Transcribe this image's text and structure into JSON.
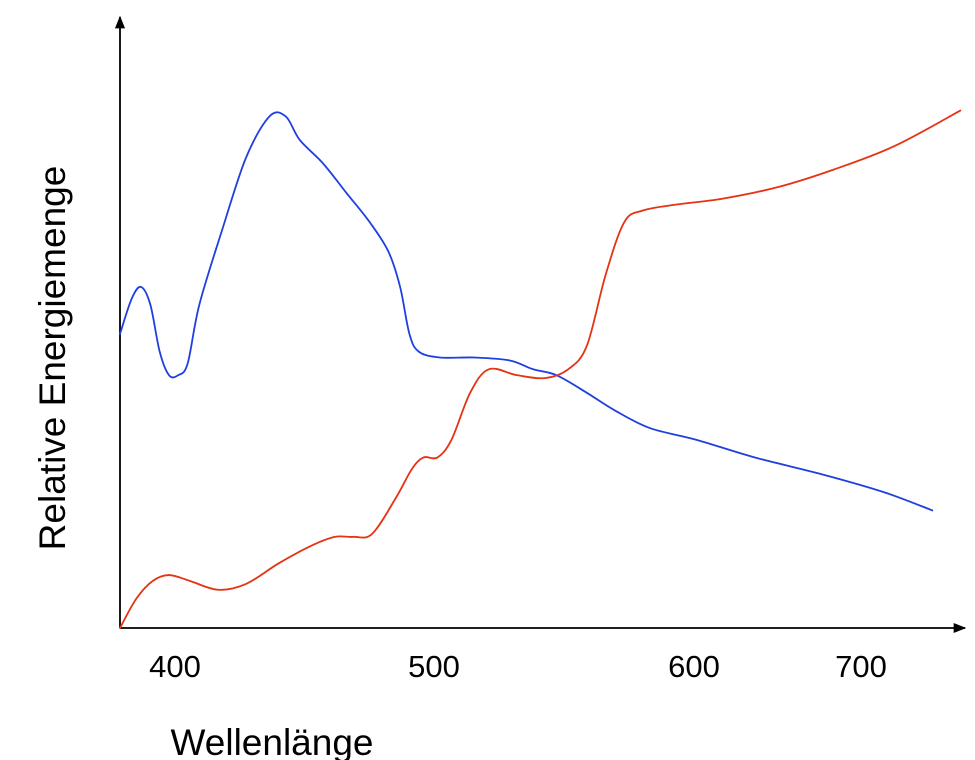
{
  "chart_data": {
    "type": "line",
    "title": "",
    "xlabel": "Wellenlänge",
    "ylabel": "Relative Energiemenge",
    "xticks": [
      "400",
      "500",
      "600",
      "700"
    ],
    "grid": false,
    "legend": "none",
    "series": [
      {
        "color": "#1f3fe0",
        "points": [
          [
            378,
            0.5
          ],
          [
            383,
            0.56
          ],
          [
            387,
            0.58
          ],
          [
            391,
            0.55
          ],
          [
            395,
            0.47
          ],
          [
            399,
            0.43
          ],
          [
            403,
            0.43
          ],
          [
            407,
            0.45
          ],
          [
            412,
            0.55
          ],
          [
            422,
            0.68
          ],
          [
            432,
            0.8
          ],
          [
            442,
            0.87
          ],
          [
            449,
            0.87
          ],
          [
            455,
            0.83
          ],
          [
            465,
            0.79
          ],
          [
            475,
            0.74
          ],
          [
            485,
            0.69
          ],
          [
            493,
            0.64
          ],
          [
            498,
            0.58
          ],
          [
            502,
            0.5
          ],
          [
            506,
            0.47
          ],
          [
            515,
            0.46
          ],
          [
            530,
            0.46
          ],
          [
            545,
            0.455
          ],
          [
            555,
            0.44
          ],
          [
            565,
            0.43
          ],
          [
            578,
            0.4
          ],
          [
            590,
            0.37
          ],
          [
            605,
            0.34
          ],
          [
            625,
            0.32
          ],
          [
            650,
            0.29
          ],
          [
            680,
            0.26
          ],
          [
            706,
            0.23
          ],
          [
            726,
            0.2
          ]
        ]
      },
      {
        "color": "#e63312",
        "points": [
          [
            378,
            0.0
          ],
          [
            385,
            0.05
          ],
          [
            392,
            0.08
          ],
          [
            399,
            0.09
          ],
          [
            408,
            0.08
          ],
          [
            420,
            0.065
          ],
          [
            432,
            0.075
          ],
          [
            446,
            0.11
          ],
          [
            460,
            0.14
          ],
          [
            470,
            0.155
          ],
          [
            478,
            0.155
          ],
          [
            486,
            0.16
          ],
          [
            496,
            0.22
          ],
          [
            503,
            0.27
          ],
          [
            508,
            0.29
          ],
          [
            514,
            0.29
          ],
          [
            520,
            0.32
          ],
          [
            528,
            0.4
          ],
          [
            536,
            0.44
          ],
          [
            548,
            0.43
          ],
          [
            560,
            0.425
          ],
          [
            570,
            0.44
          ],
          [
            578,
            0.48
          ],
          [
            586,
            0.6
          ],
          [
            594,
            0.69
          ],
          [
            602,
            0.71
          ],
          [
            616,
            0.72
          ],
          [
            636,
            0.73
          ],
          [
            660,
            0.75
          ],
          [
            684,
            0.78
          ],
          [
            710,
            0.82
          ],
          [
            738,
            0.88
          ]
        ]
      }
    ],
    "xlim": [
      378,
      740
    ],
    "ylim": [
      0,
      1
    ]
  }
}
